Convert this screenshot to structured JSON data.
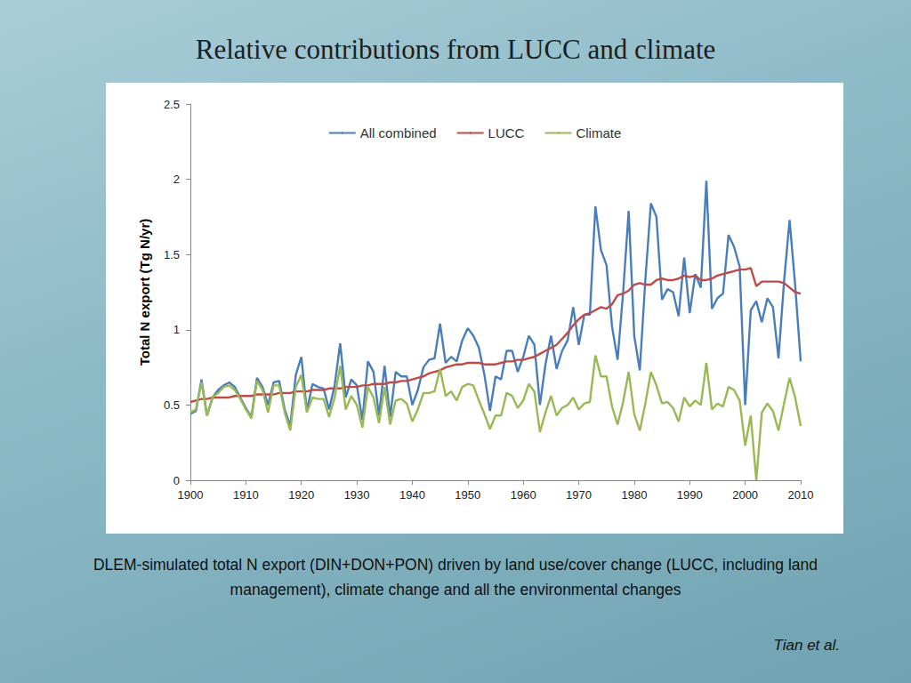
{
  "chart_data": {
    "type": "line",
    "title": "Relative contributions from LUCC and climate",
    "y_label": "Total N export (Tg N/yr)",
    "annotations": [
      "DLEM-simulated total N export (DIN+DON+PON) driven by land use/cover change (LUCC, including land management), climate change and all the environmental changes",
      "Tian et al."
    ],
    "x": [
      1900,
      1901,
      1902,
      1903,
      1904,
      1905,
      1906,
      1907,
      1908,
      1909,
      1910,
      1911,
      1912,
      1913,
      1914,
      1915,
      1916,
      1917,
      1918,
      1919,
      1920,
      1921,
      1922,
      1923,
      1924,
      1925,
      1926,
      1927,
      1928,
      1929,
      1930,
      1931,
      1932,
      1933,
      1934,
      1935,
      1936,
      1937,
      1938,
      1939,
      1940,
      1941,
      1942,
      1943,
      1944,
      1945,
      1946,
      1947,
      1948,
      1949,
      1950,
      1951,
      1952,
      1953,
      1954,
      1955,
      1956,
      1957,
      1958,
      1959,
      1960,
      1961,
      1962,
      1963,
      1964,
      1965,
      1966,
      1967,
      1968,
      1969,
      1970,
      1971,
      1972,
      1973,
      1974,
      1975,
      1976,
      1977,
      1978,
      1979,
      1980,
      1981,
      1982,
      1983,
      1984,
      1985,
      1986,
      1987,
      1988,
      1989,
      1990,
      1991,
      1992,
      1993,
      1994,
      1995,
      1996,
      1997,
      1998,
      1999,
      2000,
      2001,
      2002,
      2003,
      2004,
      2005,
      2006,
      2007,
      2008,
      2009,
      2010
    ],
    "series": [
      {
        "name": "All combined",
        "color": "#4a7ebb",
        "values": [
          0.44,
          0.46,
          0.67,
          0.43,
          0.55,
          0.6,
          0.63,
          0.65,
          0.62,
          0.55,
          0.48,
          0.42,
          0.68,
          0.62,
          0.5,
          0.65,
          0.66,
          0.47,
          0.36,
          0.7,
          0.82,
          0.46,
          0.64,
          0.62,
          0.61,
          0.47,
          0.63,
          0.91,
          0.55,
          0.67,
          0.63,
          0.4,
          0.79,
          0.72,
          0.43,
          0.76,
          0.42,
          0.72,
          0.69,
          0.69,
          0.5,
          0.6,
          0.75,
          0.8,
          0.81,
          1.04,
          0.78,
          0.82,
          0.79,
          0.93,
          1.01,
          0.96,
          0.88,
          0.7,
          0.46,
          0.69,
          0.67,
          0.86,
          0.86,
          0.72,
          0.82,
          0.96,
          0.9,
          0.5,
          0.77,
          0.96,
          0.74,
          0.86,
          0.93,
          1.15,
          0.9,
          1.1,
          1.1,
          1.82,
          1.53,
          1.43,
          1.02,
          0.8,
          1.25,
          1.79,
          0.96,
          0.73,
          1.33,
          1.84,
          1.75,
          1.2,
          1.27,
          1.25,
          1.09,
          1.48,
          1.11,
          1.37,
          1.28,
          1.99,
          1.14,
          1.21,
          1.24,
          1.63,
          1.55,
          1.42,
          0.5,
          1.13,
          1.19,
          1.05,
          1.21,
          1.15,
          0.81,
          1.32,
          1.73,
          1.3,
          0.79
        ]
      },
      {
        "name": "LUCC",
        "color": "#be4b48",
        "values": [
          0.52,
          0.53,
          0.54,
          0.54,
          0.55,
          0.55,
          0.55,
          0.55,
          0.56,
          0.56,
          0.56,
          0.56,
          0.57,
          0.57,
          0.57,
          0.57,
          0.58,
          0.58,
          0.58,
          0.59,
          0.59,
          0.59,
          0.6,
          0.6,
          0.6,
          0.61,
          0.61,
          0.61,
          0.62,
          0.62,
          0.62,
          0.63,
          0.63,
          0.64,
          0.64,
          0.64,
          0.65,
          0.65,
          0.66,
          0.66,
          0.67,
          0.68,
          0.69,
          0.71,
          0.72,
          0.73,
          0.75,
          0.76,
          0.77,
          0.77,
          0.78,
          0.78,
          0.78,
          0.77,
          0.77,
          0.77,
          0.78,
          0.79,
          0.79,
          0.8,
          0.8,
          0.81,
          0.82,
          0.84,
          0.86,
          0.88,
          0.9,
          0.94,
          0.98,
          1.03,
          1.07,
          1.1,
          1.11,
          1.13,
          1.15,
          1.14,
          1.17,
          1.23,
          1.24,
          1.26,
          1.3,
          1.31,
          1.3,
          1.3,
          1.33,
          1.34,
          1.33,
          1.33,
          1.34,
          1.36,
          1.35,
          1.36,
          1.33,
          1.33,
          1.34,
          1.36,
          1.37,
          1.38,
          1.39,
          1.4,
          1.4,
          1.41,
          1.29,
          1.32,
          1.32,
          1.32,
          1.32,
          1.31,
          1.28,
          1.25,
          1.24
        ]
      },
      {
        "name": "Climate",
        "color": "#98b954",
        "values": [
          0.45,
          0.47,
          0.65,
          0.43,
          0.55,
          0.58,
          0.62,
          0.63,
          0.6,
          0.54,
          0.47,
          0.41,
          0.66,
          0.6,
          0.45,
          0.63,
          0.63,
          0.45,
          0.33,
          0.62,
          0.7,
          0.45,
          0.55,
          0.54,
          0.54,
          0.42,
          0.55,
          0.76,
          0.47,
          0.56,
          0.5,
          0.35,
          0.62,
          0.55,
          0.38,
          0.62,
          0.37,
          0.53,
          0.54,
          0.51,
          0.39,
          0.47,
          0.58,
          0.58,
          0.59,
          0.74,
          0.56,
          0.59,
          0.53,
          0.62,
          0.64,
          0.63,
          0.53,
          0.44,
          0.34,
          0.43,
          0.43,
          0.58,
          0.56,
          0.48,
          0.53,
          0.64,
          0.59,
          0.32,
          0.45,
          0.56,
          0.43,
          0.48,
          0.5,
          0.55,
          0.47,
          0.51,
          0.52,
          0.83,
          0.69,
          0.69,
          0.49,
          0.37,
          0.52,
          0.72,
          0.44,
          0.33,
          0.51,
          0.72,
          0.63,
          0.51,
          0.52,
          0.48,
          0.39,
          0.55,
          0.49,
          0.53,
          0.5,
          0.78,
          0.47,
          0.51,
          0.49,
          0.62,
          0.6,
          0.53,
          0.23,
          0.43,
          0.0,
          0.45,
          0.51,
          0.46,
          0.33,
          0.51,
          0.68,
          0.55,
          0.36
        ]
      }
    ],
    "xlim": [
      1900,
      2010
    ],
    "xticks": [
      1900,
      1910,
      1920,
      1930,
      1940,
      1950,
      1960,
      1970,
      1980,
      1990,
      2000,
      2010
    ],
    "ylim": [
      0,
      2.5
    ],
    "yticks": [
      0,
      0.5,
      1,
      1.5,
      2,
      2.5
    ],
    "grid": false,
    "legend": "top"
  }
}
